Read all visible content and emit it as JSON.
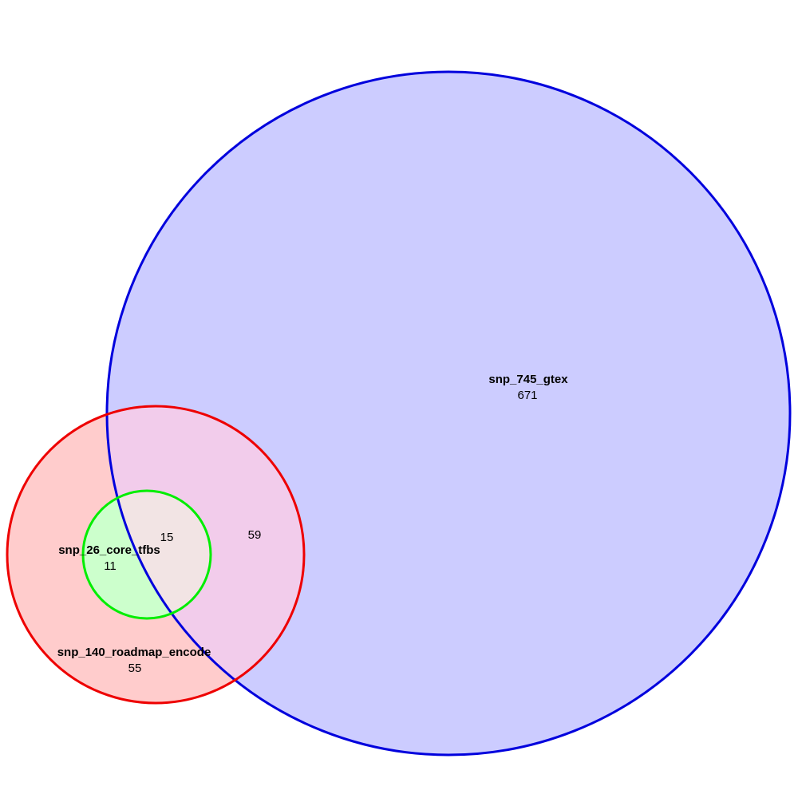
{
  "diagram": {
    "type": "venn",
    "sets": [
      {
        "id": "gtex",
        "name": "snp_745_gtex",
        "fill": "#ccccff",
        "stroke": "#0000dd"
      },
      {
        "id": "roadmap",
        "name": "snp_140_roadmap_encode",
        "fill": "#ffcccc",
        "stroke": "#ee0000"
      },
      {
        "id": "tfbs",
        "name": "snp_26_core_tfbs",
        "fill": "#ccffcc",
        "stroke": "#00ee00"
      }
    ],
    "regions": {
      "gtex_only": "671",
      "gtex_roadmap": "59",
      "roadmap_only": "55",
      "tfbs_roadmap": "11",
      "all_three": "15"
    }
  }
}
